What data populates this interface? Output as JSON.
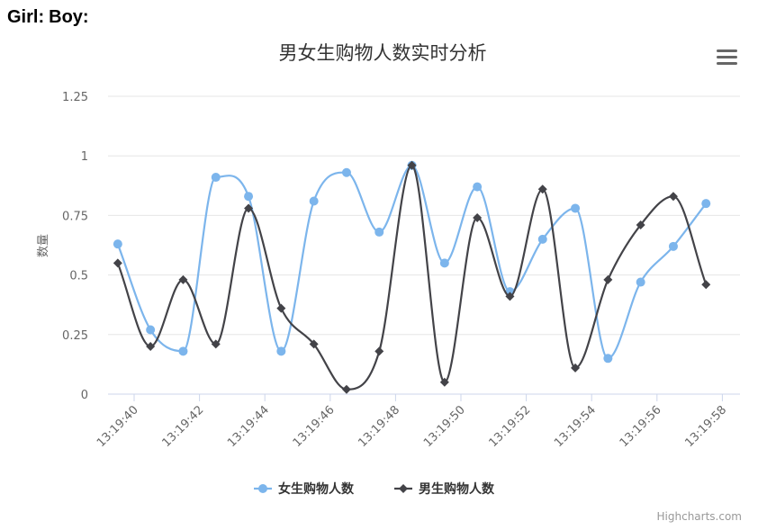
{
  "header": {
    "girl_label": "Girl:",
    "boy_label": "Boy:"
  },
  "menu": {
    "icon": "hamburger-menu-icon"
  },
  "credits": "Highcharts.com",
  "chart_data": {
    "type": "line",
    "title": "男女生购物人数实时分析",
    "xlabel": "",
    "ylabel": "数量",
    "ylim": [
      0,
      1.25
    ],
    "yticks": [
      "0",
      "0.25",
      "0.5",
      "0.75",
      "1",
      "1.25"
    ],
    "xticks": [
      "13:19:40",
      "13:19:42",
      "13:19:44",
      "13:19:46",
      "13:19:48",
      "13:19:50",
      "13:19:52",
      "13:19:54",
      "13:19:56",
      "13:19:58"
    ],
    "x": [
      "13:19:39.5",
      "13:19:40.5",
      "13:19:41.5",
      "13:19:42.5",
      "13:19:43.5",
      "13:19:44.5",
      "13:19:45.5",
      "13:19:46.5",
      "13:19:47.5",
      "13:19:48.5",
      "13:19:49.5",
      "13:19:50.5",
      "13:19:51.5",
      "13:19:52.5",
      "13:19:53.5",
      "13:19:54.5",
      "13:19:55.5",
      "13:19:56.5",
      "13:19:57.5"
    ],
    "grid": true,
    "legend_position": "bottom-center",
    "series": [
      {
        "name": "女生购物人数",
        "color": "#7cb5ec",
        "marker": "circle",
        "values": [
          0.63,
          0.27,
          0.18,
          0.91,
          0.83,
          0.18,
          0.81,
          0.93,
          0.68,
          0.96,
          0.55,
          0.87,
          0.43,
          0.65,
          0.78,
          0.15,
          0.47,
          0.62,
          0.8
        ]
      },
      {
        "name": "男生购物人数",
        "color": "#434348",
        "marker": "diamond",
        "values": [
          0.55,
          0.2,
          0.48,
          0.21,
          0.78,
          0.36,
          0.21,
          0.02,
          0.18,
          0.96,
          0.05,
          0.74,
          0.41,
          0.86,
          0.11,
          0.48,
          0.71,
          0.83,
          0.46
        ]
      }
    ]
  }
}
